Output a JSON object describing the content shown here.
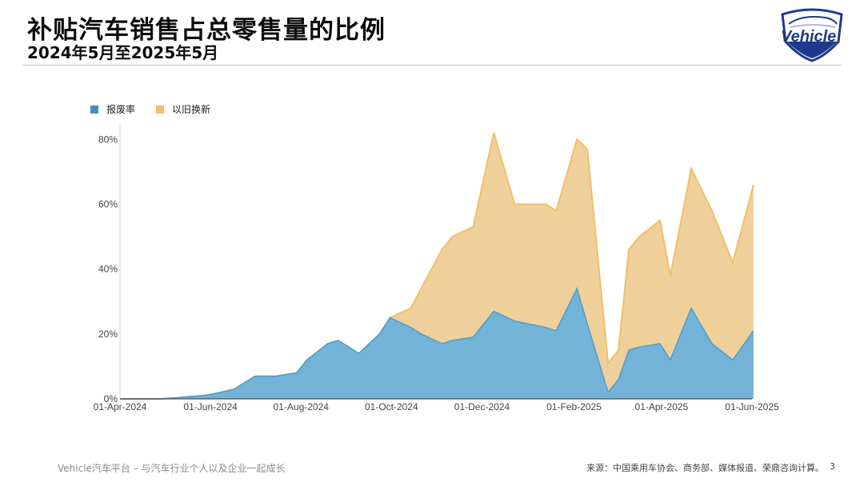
{
  "header": {
    "title": "补贴汽车销售占总零售量的比例",
    "subtitle": "2024年5月至2025年5月",
    "logo_text": "Vehicle"
  },
  "legend": {
    "items": [
      {
        "label": "报废率",
        "color": "#4a9dcc"
      },
      {
        "label": "以旧换新",
        "color": "#f0bf6a"
      }
    ]
  },
  "footer": {
    "left": "Vehicle汽车平台 – 与汽车行业个人以及企业一起成长",
    "source": "来源：中国乘用车协会、商务部、媒体报道、荣鼎咨询计算。",
    "page": "3"
  },
  "colors": {
    "scrap_fill": "#74b3d8",
    "scrap_line": "#4a9dcc",
    "tradein_fill": "#efd09a",
    "tradein_line": "#f0bf6a"
  },
  "chart_data": {
    "type": "area",
    "stacked": true,
    "x_ticks": [
      "01-Apr-2024",
      "01-Jun-2024",
      "01-Aug-2024",
      "01-Oct-2024",
      "01-Dec-2024",
      "01-Feb-2025",
      "01-Apr-2025",
      "01-Jun-2025"
    ],
    "y_ticks": [
      "0%",
      "20%",
      "40%",
      "60%",
      "80%"
    ],
    "ylim": [
      0,
      85
    ],
    "x": [
      "2024-04-01",
      "2024-04-15",
      "2024-04-29",
      "2024-05-13",
      "2024-05-27",
      "2024-06-03",
      "2024-06-17",
      "2024-07-01",
      "2024-07-08",
      "2024-07-15",
      "2024-07-29",
      "2024-08-05",
      "2024-08-19",
      "2024-08-26",
      "2024-09-09",
      "2024-09-23",
      "2024-09-30",
      "2024-10-14",
      "2024-10-21",
      "2024-11-04",
      "2024-11-11",
      "2024-11-25",
      "2024-12-09",
      "2024-12-23",
      "2025-01-13",
      "2025-01-20",
      "2025-02-03",
      "2025-02-10",
      "2025-02-24",
      "2025-03-03",
      "2025-03-10",
      "2025-03-17",
      "2025-03-31",
      "2025-04-07",
      "2025-04-21",
      "2025-05-05",
      "2025-05-19",
      "2025-06-02"
    ],
    "series": [
      {
        "name": "报废率",
        "values": [
          0,
          0,
          0,
          0.5,
          1,
          1.5,
          3,
          7,
          7,
          7,
          8,
          12,
          17,
          18,
          14,
          20,
          25,
          22,
          20,
          17,
          18,
          19,
          27,
          24,
          22,
          21,
          34,
          23,
          2,
          6,
          15,
          16,
          17,
          12,
          28,
          17,
          12,
          21
        ]
      },
      {
        "name": "以旧换新",
        "values": [
          0,
          0,
          0,
          0,
          0,
          0,
          0,
          0,
          0,
          0,
          0,
          0,
          0,
          0,
          0,
          0,
          0,
          6,
          14,
          29,
          32,
          34,
          55,
          36,
          38,
          37,
          46,
          54,
          9,
          9,
          31,
          34,
          38,
          26,
          43,
          41,
          30,
          45
        ]
      }
    ]
  }
}
